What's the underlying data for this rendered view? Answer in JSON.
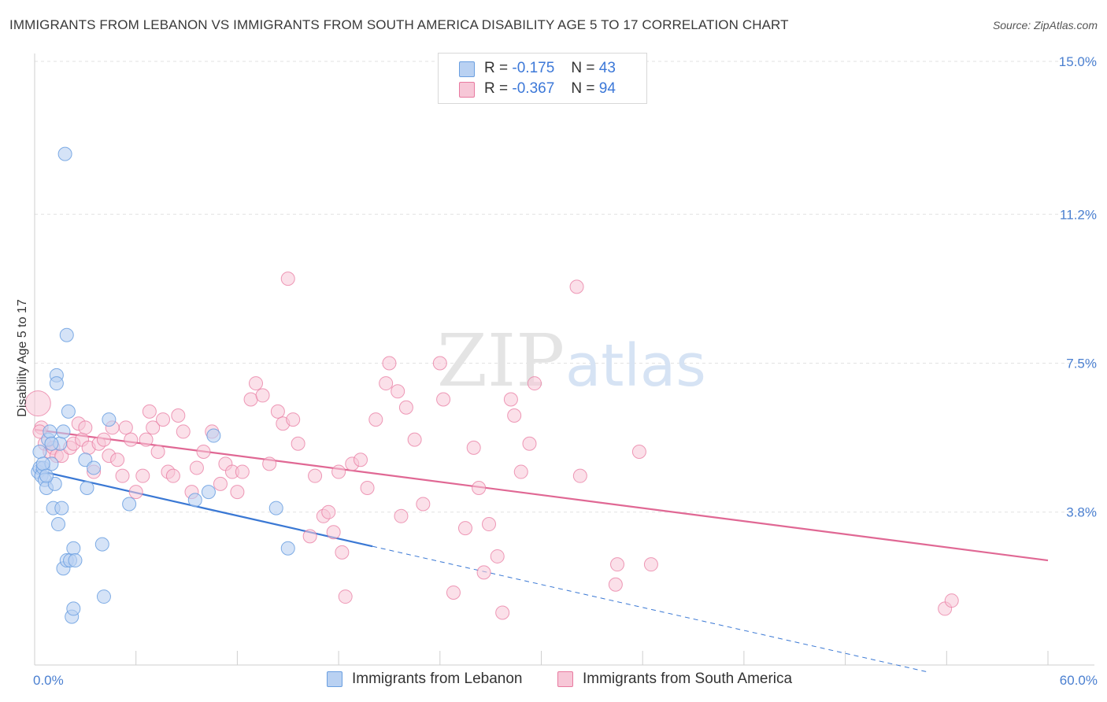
{
  "title": "IMMIGRANTS FROM LEBANON VS IMMIGRANTS FROM SOUTH AMERICA DISABILITY AGE 5 TO 17 CORRELATION CHART",
  "source": "Source: ZipAtlas.com",
  "legend": {
    "rows": [
      {
        "r_label": "R =",
        "r_value": "-0.175",
        "n_label": "N =",
        "n_value": "43"
      },
      {
        "r_label": "R =",
        "r_value": "-0.367",
        "n_label": "N =",
        "n_value": "94"
      }
    ]
  },
  "colors": {
    "lebanon": "#6a9fe0",
    "lebanon_fill": "#b9d1f2",
    "lebanon_line": "#3a78d4",
    "south_america": "#e87aa0",
    "south_america_fill": "#f7c7d7",
    "south_america_line": "#e06894",
    "tick_text": "#4a7fd0",
    "grid": "#e2e2e2"
  },
  "chart_data": {
    "type": "scatter",
    "title": "IMMIGRANTS FROM LEBANON VS IMMIGRANTS FROM SOUTH AMERICA DISABILITY AGE 5 TO 17 CORRELATION CHART",
    "xlabel": "",
    "ylabel": "Disability Age 5 to 17",
    "xlim": [
      0,
      60
    ],
    "ylim": [
      0,
      15.0
    ],
    "x_tick_labels": [
      "0.0%",
      "60.0%"
    ],
    "y_tick_labels": [
      "15.0%",
      "11.2%",
      "7.5%",
      "3.8%"
    ],
    "y_ticks": [
      15.0,
      11.2,
      7.5,
      3.8
    ],
    "grid": true,
    "legend_position": "top-center",
    "watermark": "ZIPatlas",
    "series": [
      {
        "name": "Immigrants from Lebanon",
        "color": "#6a9fe0",
        "points": [
          [
            0.2,
            4.8
          ],
          [
            0.3,
            4.9
          ],
          [
            0.4,
            4.7
          ],
          [
            0.5,
            4.9
          ],
          [
            0.3,
            5.3
          ],
          [
            0.6,
            4.6
          ],
          [
            0.7,
            4.4
          ],
          [
            0.8,
            5.6
          ],
          [
            0.9,
            5.8
          ],
          [
            1.0,
            5.0
          ],
          [
            1.1,
            3.9
          ],
          [
            1.2,
            4.5
          ],
          [
            1.3,
            7.2
          ],
          [
            1.3,
            7.0
          ],
          [
            1.4,
            3.5
          ],
          [
            1.5,
            5.5
          ],
          [
            1.6,
            3.9
          ],
          [
            1.7,
            2.4
          ],
          [
            1.7,
            5.8
          ],
          [
            1.8,
            12.7
          ],
          [
            1.9,
            8.2
          ],
          [
            1.9,
            2.6
          ],
          [
            2.0,
            6.3
          ],
          [
            2.1,
            2.6
          ],
          [
            2.2,
            1.2
          ],
          [
            2.3,
            1.4
          ],
          [
            2.3,
            2.9
          ],
          [
            2.4,
            2.6
          ],
          [
            3.0,
            5.1
          ],
          [
            3.1,
            4.4
          ],
          [
            3.5,
            4.9
          ],
          [
            4.0,
            3.0
          ],
          [
            4.1,
            1.7
          ],
          [
            4.4,
            6.1
          ],
          [
            5.6,
            4.0
          ],
          [
            9.5,
            4.1
          ],
          [
            10.3,
            4.3
          ],
          [
            10.6,
            5.7
          ],
          [
            14.3,
            3.9
          ],
          [
            15.0,
            2.9
          ],
          [
            0.5,
            5.0
          ],
          [
            0.7,
            4.7
          ],
          [
            1.0,
            5.5
          ]
        ],
        "sizes": [
          [
            0.3,
            5.3,
            14
          ]
        ],
        "trend": {
          "x": [
            0,
            20
          ],
          "y": [
            4.85,
            2.95
          ],
          "dashed_extension": {
            "x": [
              20,
              60
            ],
            "y": [
              2.95,
              -0.85
            ]
          }
        }
      },
      {
        "name": "Immigrants from South America",
        "color": "#e87aa0",
        "points": [
          [
            0.2,
            6.5
          ],
          [
            0.4,
            5.9
          ],
          [
            0.6,
            5.5
          ],
          [
            0.9,
            5.3
          ],
          [
            1.1,
            5.4
          ],
          [
            1.3,
            5.2
          ],
          [
            1.6,
            5.2
          ],
          [
            2.1,
            5.4
          ],
          [
            2.3,
            5.5
          ],
          [
            2.6,
            6.0
          ],
          [
            2.8,
            5.6
          ],
          [
            3.0,
            5.9
          ],
          [
            3.2,
            5.4
          ],
          [
            3.5,
            4.8
          ],
          [
            3.8,
            5.5
          ],
          [
            4.1,
            5.6
          ],
          [
            4.4,
            5.2
          ],
          [
            4.6,
            5.9
          ],
          [
            4.9,
            5.1
          ],
          [
            5.2,
            4.7
          ],
          [
            5.4,
            5.9
          ],
          [
            5.7,
            5.6
          ],
          [
            6.0,
            4.3
          ],
          [
            6.4,
            4.7
          ],
          [
            6.6,
            5.6
          ],
          [
            6.8,
            6.3
          ],
          [
            7.0,
            5.9
          ],
          [
            7.3,
            5.3
          ],
          [
            7.6,
            6.1
          ],
          [
            7.9,
            4.8
          ],
          [
            8.2,
            4.7
          ],
          [
            8.5,
            6.2
          ],
          [
            8.8,
            5.8
          ],
          [
            9.3,
            4.3
          ],
          [
            9.6,
            4.9
          ],
          [
            10.0,
            5.3
          ],
          [
            10.5,
            5.8
          ],
          [
            11.0,
            4.5
          ],
          [
            11.3,
            5.0
          ],
          [
            11.7,
            4.8
          ],
          [
            12.0,
            4.3
          ],
          [
            12.3,
            4.8
          ],
          [
            12.8,
            6.6
          ],
          [
            13.1,
            7.0
          ],
          [
            13.5,
            6.7
          ],
          [
            13.9,
            5.0
          ],
          [
            14.4,
            6.3
          ],
          [
            14.7,
            6.0
          ],
          [
            15.0,
            9.6
          ],
          [
            15.3,
            6.1
          ],
          [
            15.6,
            5.5
          ],
          [
            16.3,
            3.2
          ],
          [
            16.6,
            4.7
          ],
          [
            17.1,
            3.7
          ],
          [
            17.4,
            3.8
          ],
          [
            17.7,
            3.3
          ],
          [
            18.0,
            4.8
          ],
          [
            18.2,
            2.8
          ],
          [
            18.4,
            1.7
          ],
          [
            18.8,
            5.0
          ],
          [
            19.3,
            5.1
          ],
          [
            19.7,
            4.4
          ],
          [
            20.2,
            6.1
          ],
          [
            20.8,
            7.0
          ],
          [
            21.0,
            7.5
          ],
          [
            21.5,
            6.8
          ],
          [
            21.7,
            3.7
          ],
          [
            22.0,
            6.4
          ],
          [
            22.5,
            5.6
          ],
          [
            23.0,
            4.0
          ],
          [
            24.0,
            7.5
          ],
          [
            24.2,
            6.6
          ],
          [
            24.8,
            1.8
          ],
          [
            25.5,
            3.4
          ],
          [
            26.0,
            5.4
          ],
          [
            26.3,
            4.4
          ],
          [
            26.6,
            2.3
          ],
          [
            26.9,
            3.5
          ],
          [
            27.4,
            2.7
          ],
          [
            27.7,
            1.3
          ],
          [
            28.2,
            6.6
          ],
          [
            28.4,
            6.2
          ],
          [
            28.8,
            4.8
          ],
          [
            29.3,
            5.5
          ],
          [
            29.6,
            7.0
          ],
          [
            32.1,
            9.4
          ],
          [
            32.3,
            4.7
          ],
          [
            34.4,
            2.0
          ],
          [
            34.5,
            2.5
          ],
          [
            35.8,
            5.3
          ],
          [
            36.5,
            2.5
          ],
          [
            53.9,
            1.4
          ],
          [
            54.3,
            1.6
          ],
          [
            0.3,
            5.8
          ]
        ],
        "trend": {
          "x": [
            0,
            60
          ],
          "y": [
            5.85,
            2.6
          ]
        }
      }
    ]
  },
  "bottom_legend": {
    "lebanon_label": "Immigrants from Lebanon",
    "south_america_label": "Immigrants from South America"
  }
}
